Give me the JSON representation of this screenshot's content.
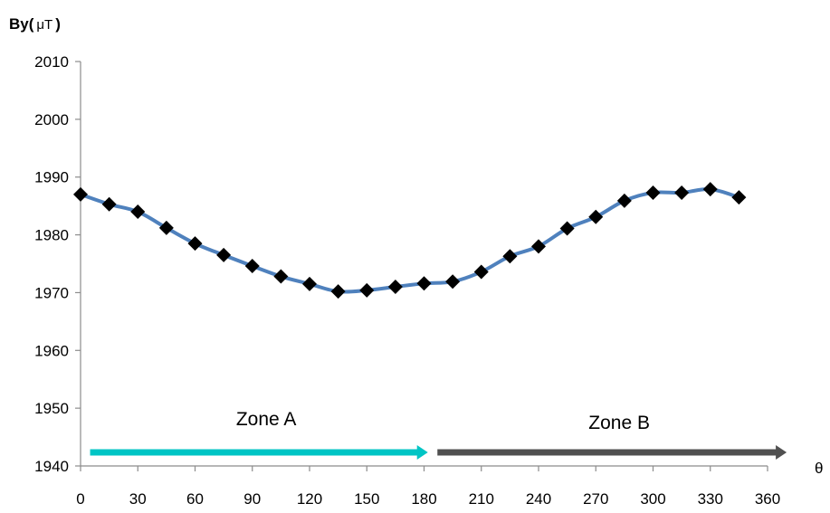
{
  "chart_data": {
    "type": "line",
    "ylabel_main": "By(",
    "ylabel_unit": "μT",
    "ylabel_close": ")",
    "xlabel": "θ",
    "xlim": [
      0,
      360
    ],
    "ylim": [
      1940,
      2010
    ],
    "xticks": [
      0,
      30,
      60,
      90,
      120,
      150,
      180,
      210,
      240,
      270,
      300,
      330,
      360
    ],
    "yticks": [
      1940,
      1950,
      1960,
      1970,
      1980,
      1990,
      2000,
      2010
    ],
    "grid": false,
    "series": [
      {
        "color": "#4f81bd",
        "marker": "diamond",
        "marker_color": "#000000",
        "x": [
          0,
          15,
          30,
          45,
          60,
          75,
          90,
          105,
          120,
          135,
          150,
          165,
          180,
          195,
          210,
          225,
          240,
          255,
          270,
          285,
          300,
          315,
          330,
          345
        ],
        "y": [
          1987.0,
          1985.3,
          1984.0,
          1981.2,
          1978.5,
          1976.5,
          1974.6,
          1972.8,
          1971.5,
          1970.2,
          1970.4,
          1971.0,
          1971.6,
          1971.9,
          1973.6,
          1976.3,
          1978.0,
          1981.1,
          1983.1,
          1985.9,
          1987.3,
          1987.3,
          1987.9,
          1986.5
        ]
      }
    ],
    "annotations": [
      {
        "text": "Zone A",
        "arrow_color": "#00c5c5",
        "x_from": 5,
        "x_to": 182
      },
      {
        "text": "Zone B",
        "arrow_color": "#505050",
        "x_from": 187,
        "x_to": 370
      }
    ]
  }
}
